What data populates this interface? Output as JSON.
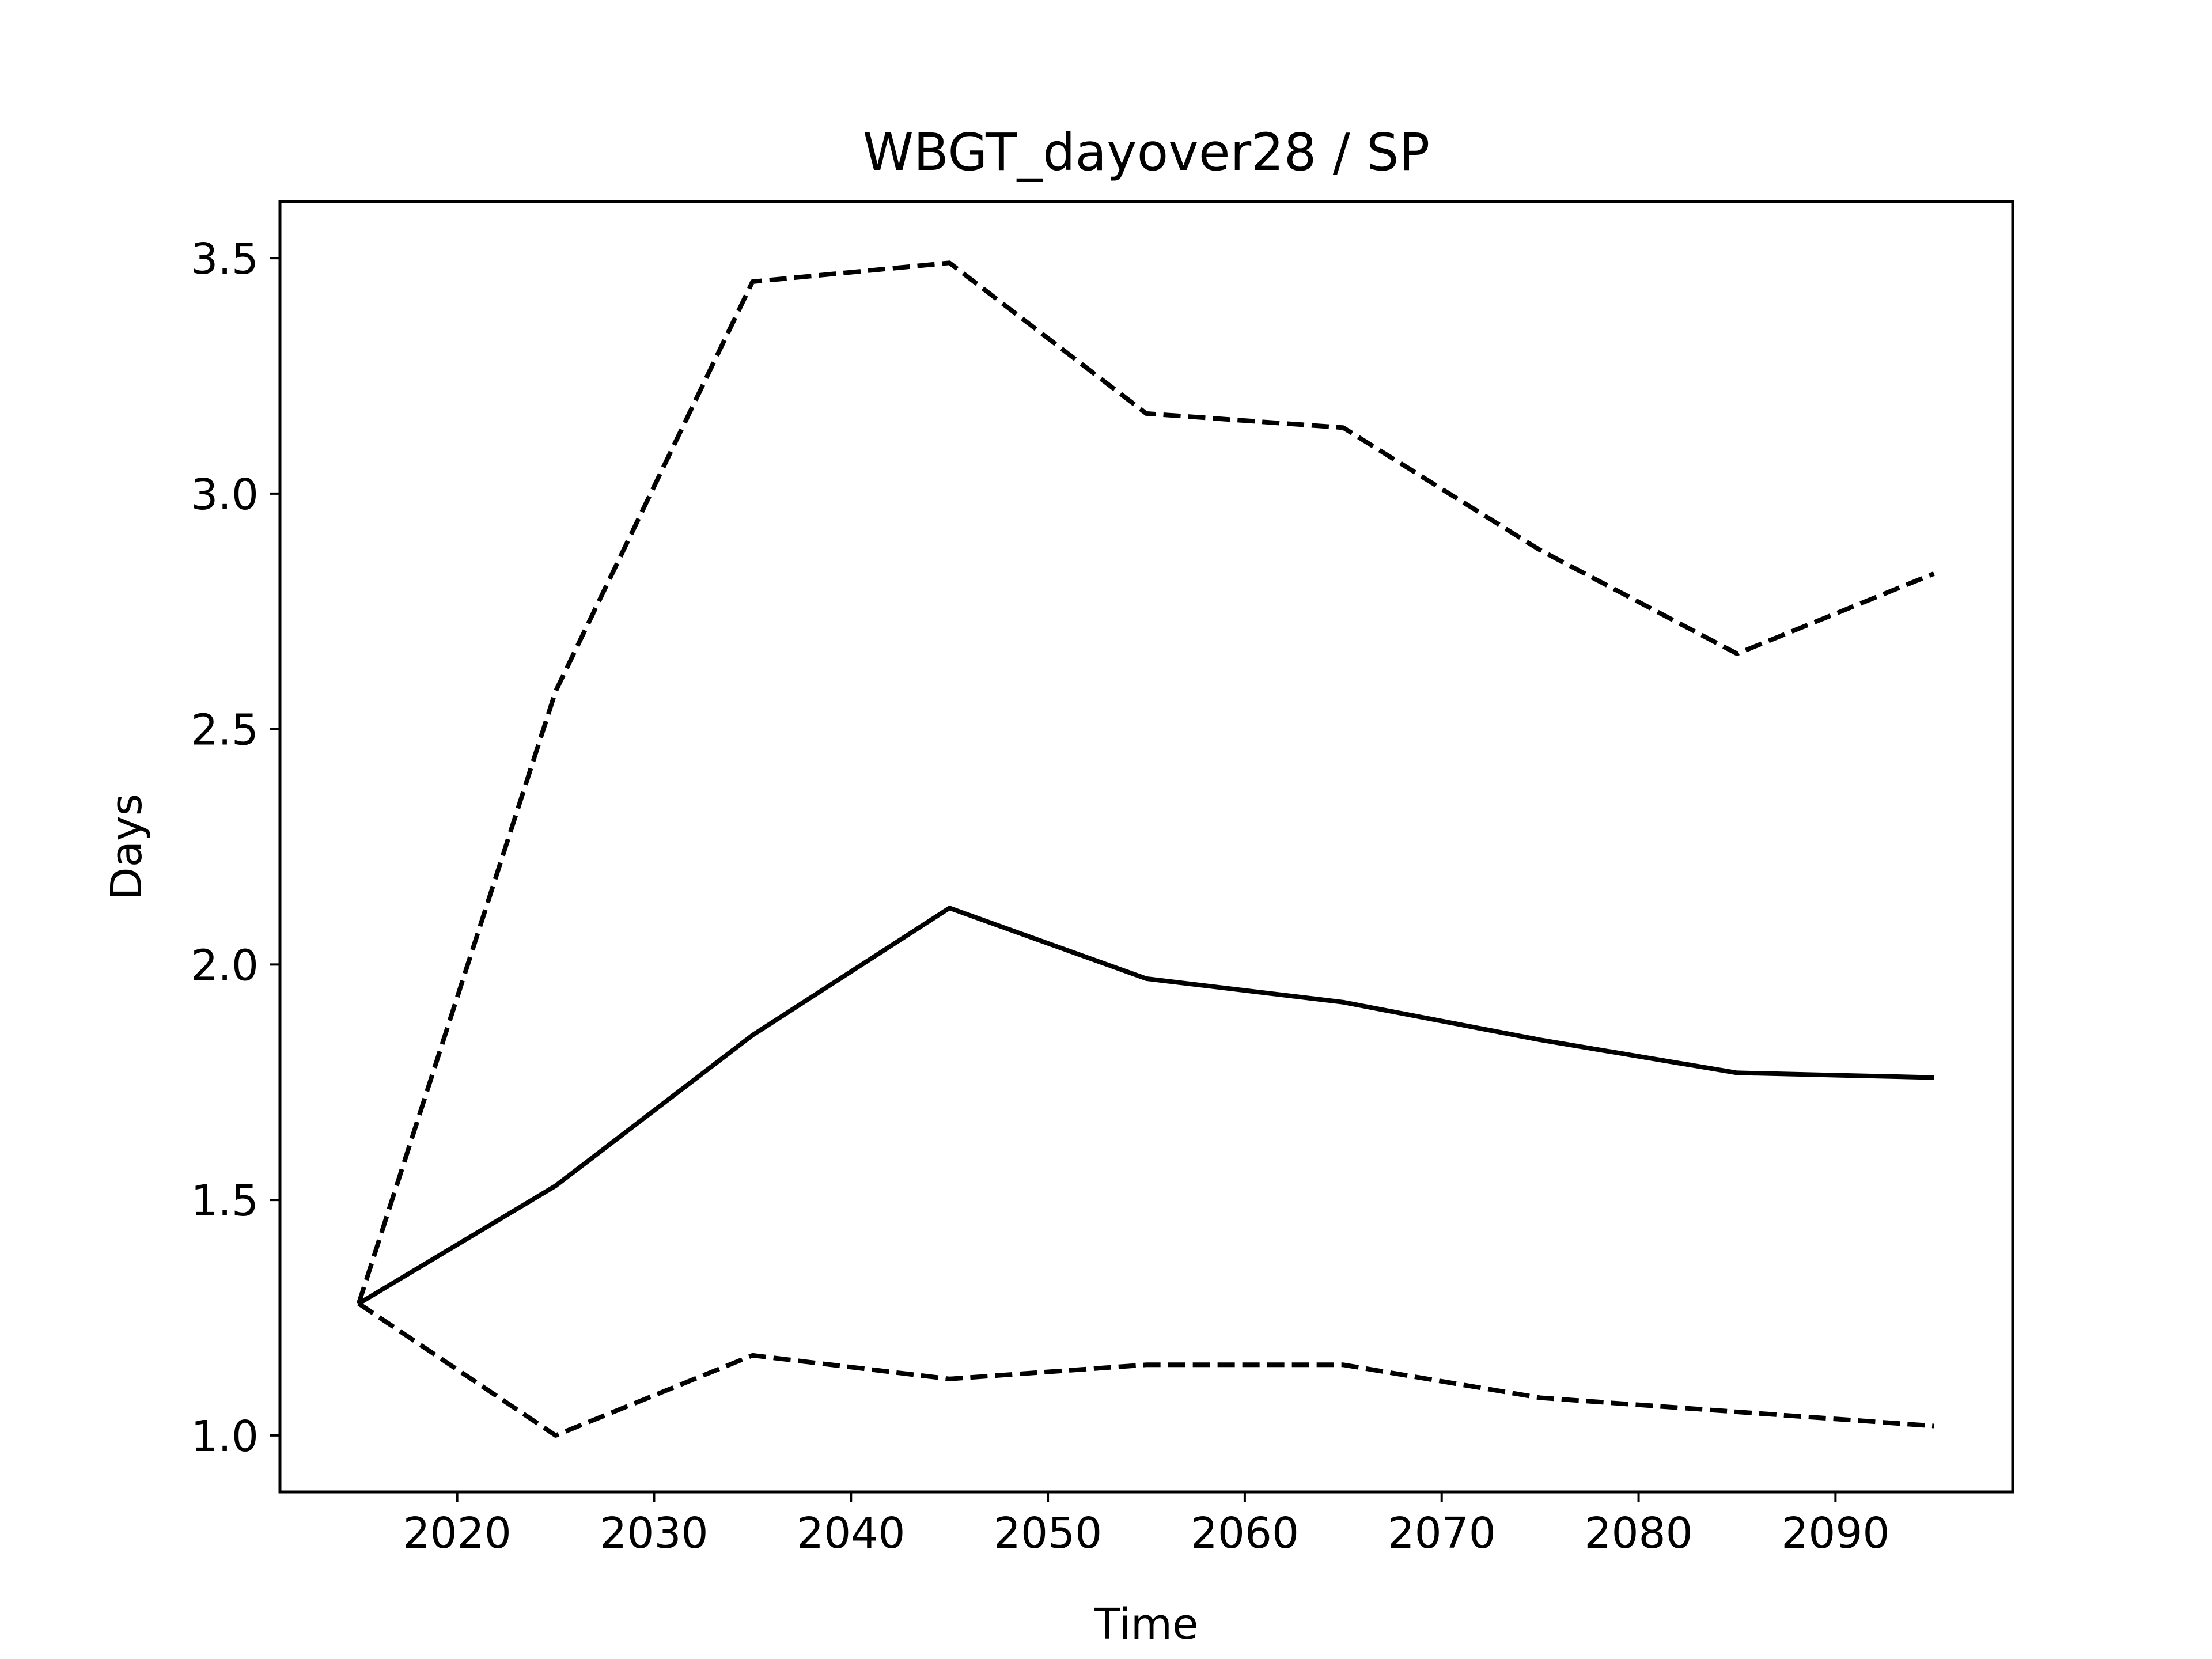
{
  "chart_data": {
    "type": "line",
    "title": "WBGT_dayover28 / SP",
    "xlabel": "Time",
    "ylabel": "Days",
    "x": [
      2015,
      2025,
      2035,
      2045,
      2055,
      2065,
      2075,
      2085,
      2095
    ],
    "xlim": [
      2011,
      2099
    ],
    "ylim": [
      0.88,
      3.62
    ],
    "xticks": [
      2020,
      2030,
      2040,
      2050,
      2060,
      2070,
      2080,
      2090
    ],
    "yticks": [
      1.0,
      1.5,
      2.0,
      2.5,
      3.0,
      3.5
    ],
    "ytick_labels": [
      "1.0",
      "1.5",
      "2.0",
      "2.5",
      "3.0",
      "3.5"
    ],
    "grid": false,
    "series": [
      {
        "style": "solid",
        "color": "#000000",
        "values": [
          1.28,
          1.53,
          1.85,
          2.12,
          1.97,
          1.92,
          1.84,
          1.77,
          1.76
        ]
      },
      {
        "style": "dashed",
        "color": "#000000",
        "values": [
          1.28,
          2.58,
          3.45,
          3.49,
          3.17,
          3.14,
          2.88,
          2.66,
          2.83
        ]
      },
      {
        "style": "dashed",
        "color": "#000000",
        "values": [
          1.28,
          1.0,
          1.17,
          1.12,
          1.15,
          1.15,
          1.08,
          1.05,
          1.02
        ]
      }
    ]
  }
}
